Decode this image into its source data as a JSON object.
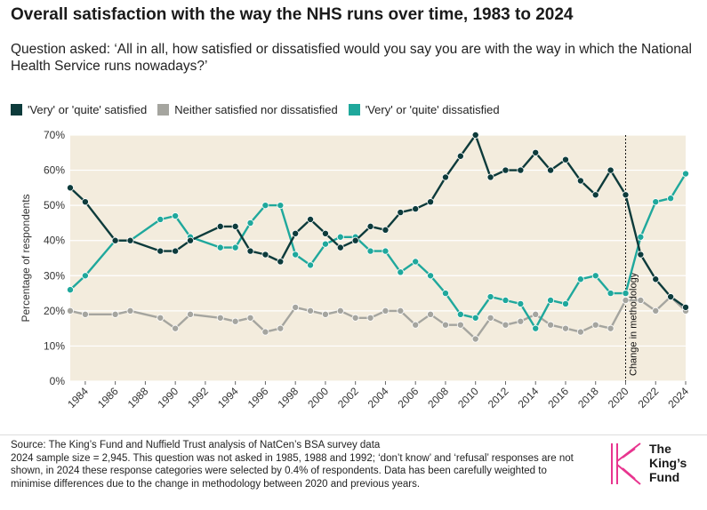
{
  "title": "Overall satisfaction with the way the NHS runs over time, 1983 to 2024",
  "subtitle": "Question asked: ‘All in all, how satisfied or dissatisfied would you say you are with the way in which the National Health Service runs nowadays?’",
  "footer": {
    "source": "Source: The King’s Fund and Nuffield Trust analysis of NatCen’s BSA survey data",
    "note": "2024 sample size = 2,945. This question was not asked in 1985, 1988 and 1992; ‘don’t know’ and ‘refusal’ responses are not shown, in 2024 these response categories were selected by 0.4% of respondents. Data has been carefully weighted to minimise differences due to the change in methodology between 2020 and previous years."
  },
  "logo": {
    "line1": "The",
    "line2": "King’s",
    "line3": "Fund",
    "mark_color": "#e8358f"
  },
  "chart_data": {
    "type": "line",
    "title": "Overall satisfaction with the way the NHS runs over time, 1983 to 2024",
    "xlabel": "",
    "ylabel": "Percentage of respondents",
    "xlim": [
      1983,
      2024
    ],
    "ylim": [
      0,
      70
    ],
    "yticks": [
      0,
      10,
      20,
      30,
      40,
      50,
      60,
      70
    ],
    "ytick_labels": [
      "0%",
      "10%",
      "20%",
      "30%",
      "40%",
      "50%",
      "60%",
      "70%"
    ],
    "xticks": [
      1984,
      1986,
      1988,
      1990,
      1992,
      1994,
      1996,
      1998,
      2000,
      2002,
      2004,
      2006,
      2008,
      2010,
      2012,
      2014,
      2016,
      2018,
      2020,
      2022,
      2024
    ],
    "grid": "horizontal",
    "background": "#f3ecdd",
    "legend_position": "top-left",
    "annotation": {
      "x": 2020,
      "text": "Change in methodology"
    },
    "x": [
      1983,
      1984,
      1986,
      1987,
      1989,
      1990,
      1991,
      1993,
      1994,
      1995,
      1996,
      1997,
      1998,
      1999,
      2000,
      2001,
      2002,
      2003,
      2004,
      2005,
      2006,
      2007,
      2008,
      2009,
      2010,
      2011,
      2012,
      2013,
      2014,
      2015,
      2016,
      2017,
      2018,
      2019,
      2020,
      2021,
      2022,
      2023,
      2024
    ],
    "series": [
      {
        "name": "'Very' or 'quite' satisfied",
        "color": "#0d3b3b",
        "values": [
          55,
          51,
          40,
          40,
          37,
          37,
          40,
          44,
          44,
          37,
          36,
          34,
          42,
          46,
          42,
          38,
          40,
          44,
          43,
          48,
          49,
          51,
          58,
          64,
          70,
          58,
          60,
          60,
          65,
          60,
          63,
          57,
          53,
          60,
          53,
          36,
          29,
          24,
          21
        ]
      },
      {
        "name": "Neither satisfied nor dissatisfied",
        "color": "#a5a59f",
        "values": [
          20,
          19,
          19,
          20,
          18,
          15,
          19,
          18,
          17,
          18,
          14,
          15,
          21,
          20,
          19,
          20,
          18,
          18,
          20,
          20,
          16,
          19,
          16,
          16,
          12,
          18,
          16,
          17,
          19,
          16,
          15,
          14,
          16,
          15,
          23,
          23,
          20,
          24,
          20
        ]
      },
      {
        "name": "'Very' or 'quite' dissatisfied",
        "color": "#1fa89c",
        "values": [
          26,
          30,
          40,
          40,
          46,
          47,
          41,
          38,
          38,
          45,
          50,
          50,
          36,
          33,
          39,
          41,
          41,
          37,
          37,
          31,
          34,
          30,
          25,
          19,
          18,
          24,
          23,
          22,
          15,
          23,
          22,
          29,
          30,
          25,
          25,
          41,
          51,
          52,
          59
        ]
      }
    ]
  }
}
